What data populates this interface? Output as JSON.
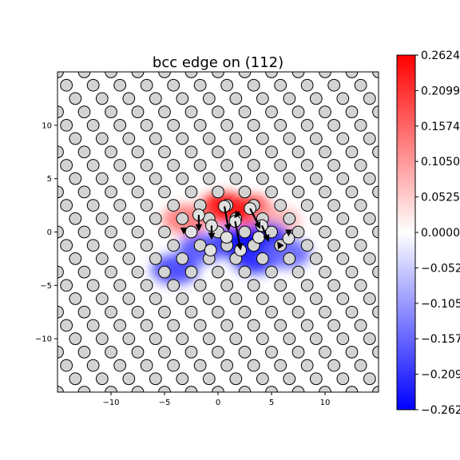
{
  "chart_data": {
    "type": "heatmap",
    "title": "bcc edge on (112)",
    "xlabel": "",
    "ylabel": "",
    "xlim": [
      -15,
      15
    ],
    "ylim": [
      -15,
      15
    ],
    "x_ticks": [
      -10,
      -5,
      0,
      5,
      10
    ],
    "x_tick_labels": [
      "−10",
      "−5",
      "0",
      "5",
      "10"
    ],
    "y_ticks": [
      10,
      5,
      0,
      -5,
      -10
    ],
    "y_tick_labels": [
      "10",
      "5",
      "0",
      "−5",
      "−10"
    ],
    "grid": false,
    "colormap": "bwr",
    "color_range": [
      -0.2624,
      0.2624
    ],
    "colorbar_ticks": [
      0.2624,
      0.2099,
      0.1574,
      0.105,
      0.0525,
      0.0,
      -0.0525,
      -0.105,
      -0.1574,
      -0.2099,
      -0.2624
    ],
    "colorbar_tick_labels": [
      "0.2624",
      "0.2099",
      "0.1574",
      "0.1050",
      "0.0525",
      "0.0000",
      "−0.0525",
      "−0.1050",
      "−0.1574",
      "−0.2099",
      "−0.2624"
    ],
    "lattice": {
      "row_spacing": 1.25,
      "col_spacing": 2.5,
      "row_shift": 0.833,
      "atom_radius": 0.55
    },
    "field_peaks": [
      {
        "x": 0.5,
        "y": 2.3,
        "value": 0.2624
      },
      {
        "x": 3.0,
        "y": 2.0,
        "value": 0.24
      },
      {
        "x": -3.0,
        "y": 1.2,
        "value": 0.14
      },
      {
        "x": 5.5,
        "y": 1.0,
        "value": 0.08
      },
      {
        "x": 1.5,
        "y": -1.0,
        "value": -0.2624
      },
      {
        "x": 4.5,
        "y": -0.5,
        "value": -0.2624
      },
      {
        "x": 3.5,
        "y": -2.5,
        "value": -0.23
      },
      {
        "x": -4.0,
        "y": -3.5,
        "value": -0.2
      },
      {
        "x": -1.5,
        "y": -1.5,
        "value": -0.18
      },
      {
        "x": 6.5,
        "y": -2.0,
        "value": -0.16
      }
    ],
    "displacement_arrows": [
      {
        "x": 0.6,
        "y": 2.4,
        "dx": 0.4,
        "dy": -2.2
      },
      {
        "x": 1.6,
        "y": 1.0,
        "dx": 0.5,
        "dy": -2.6
      },
      {
        "x": 3.0,
        "y": 2.2,
        "dx": 0.9,
        "dy": -1.8
      },
      {
        "x": 4.1,
        "y": 0.6,
        "dx": 0.6,
        "dy": -1.4
      },
      {
        "x": -1.8,
        "y": 1.6,
        "dx": 0.0,
        "dy": -1.4
      },
      {
        "x": -0.6,
        "y": 0.6,
        "dx": 0.0,
        "dy": -1.2
      },
      {
        "x": 2.0,
        "y": 1.9,
        "dx": -0.4,
        "dy": -0.5
      },
      {
        "x": 6.6,
        "y": 0.2,
        "dx": 0.0,
        "dy": -0.5
      },
      {
        "x": 5.8,
        "y": -1.3,
        "dx": -0.2,
        "dy": 0.3
      },
      {
        "x": -3.2,
        "y": 0.3,
        "dx": 0.0,
        "dy": -0.4
      }
    ],
    "highlighted_atoms": [
      {
        "x": -2.5,
        "y": 0.0
      },
      {
        "x": -1.8,
        "y": 1.6
      },
      {
        "x": -0.6,
        "y": 0.6
      },
      {
        "x": 0.6,
        "y": 2.4
      },
      {
        "x": 1.6,
        "y": 1.0
      },
      {
        "x": 3.0,
        "y": 2.2
      },
      {
        "x": 4.1,
        "y": 0.6
      },
      {
        "x": 0.8,
        "y": -0.5
      },
      {
        "x": 2.1,
        "y": -1.7
      },
      {
        "x": 3.8,
        "y": -0.5
      },
      {
        "x": 6.6,
        "y": -0.6
      },
      {
        "x": -0.7,
        "y": -1.7
      }
    ]
  }
}
